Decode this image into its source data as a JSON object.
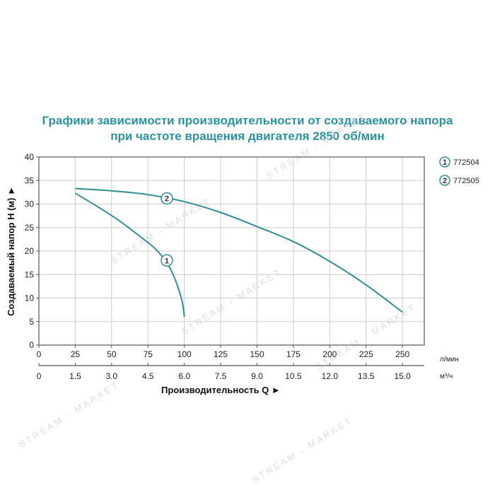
{
  "page": {
    "title_line1": "Графики зависимости производительности от создаваемого напора",
    "title_line2": "при частоте вращения двигателя 2850 об/мин",
    "watermark": "STREAM - MARKET"
  },
  "colors": {
    "title": "#2a93a3",
    "curve": "#2e8f99",
    "grid": "#cccccc",
    "frame": "#555555",
    "text": "#222222"
  },
  "chart_data": {
    "type": "line",
    "xlabel": "Производительность Q ►",
    "ylabel": "Создаваемый напор H (м) ►",
    "xlim": [
      0,
      265
    ],
    "ylim": [
      0,
      40
    ],
    "grid": true,
    "legend_position": "right",
    "x_unit_primary": "л/мин",
    "x_unit_secondary": "м³/ч",
    "x_ticks": [
      "0",
      "25",
      "50",
      "75",
      "100",
      "125",
      "150",
      "175",
      "200",
      "225",
      "250"
    ],
    "x_ticks_secondary": [
      "0",
      "1.5",
      "3.0",
      "4.5",
      "6.0",
      "7.5",
      "9.0",
      "10.5",
      "12.0",
      "13.5",
      "15.0"
    ],
    "y_ticks": [
      "0",
      "5",
      "10",
      "15",
      "20",
      "25",
      "30",
      "35",
      "40"
    ],
    "series": [
      {
        "name": "772504",
        "marker": "1",
        "marker_at": [
          88,
          18
        ],
        "points": [
          [
            25,
            32.3
          ],
          [
            40,
            29.5
          ],
          [
            55,
            26.5
          ],
          [
            70,
            23
          ],
          [
            80,
            20.5
          ],
          [
            88,
            17.5
          ],
          [
            93,
            14.5
          ],
          [
            97,
            11
          ],
          [
            99,
            8.5
          ],
          [
            100,
            6
          ]
        ]
      },
      {
        "name": "772505",
        "marker": "2",
        "marker_at": [
          88,
          31.2
        ],
        "points": [
          [
            25,
            33.3
          ],
          [
            50,
            32.8
          ],
          [
            75,
            32
          ],
          [
            100,
            30.5
          ],
          [
            125,
            28.2
          ],
          [
            150,
            25.2
          ],
          [
            175,
            22
          ],
          [
            200,
            17.8
          ],
          [
            225,
            12.8
          ],
          [
            250,
            7
          ]
        ]
      }
    ]
  }
}
